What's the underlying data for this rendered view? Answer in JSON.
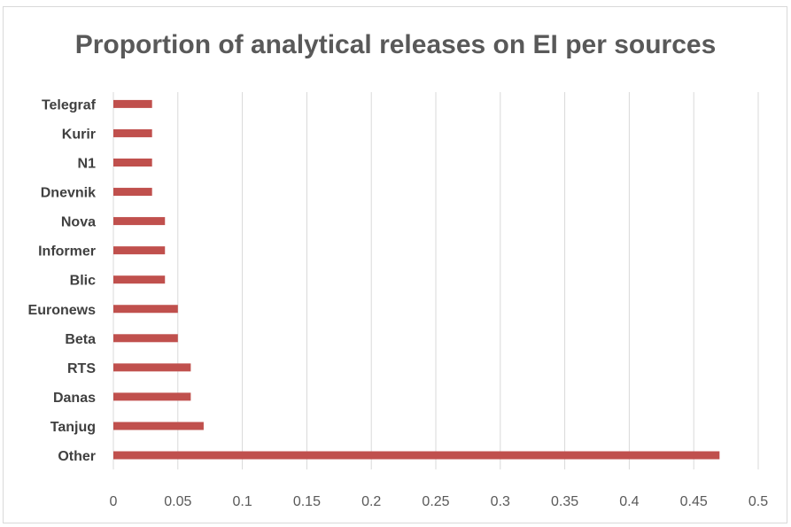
{
  "chart_data": {
    "type": "bar",
    "orientation": "horizontal",
    "title": "Proportion of analytical releases on EI per sources",
    "categories": [
      "Other",
      "Tanjug",
      "Danas",
      "RTS",
      "Beta",
      "Euronews",
      "Blic",
      "Informer",
      "Nova",
      "Dnevnik",
      "N1",
      "Kurir",
      "Telegraf"
    ],
    "values": [
      0.47,
      0.07,
      0.06,
      0.06,
      0.05,
      0.05,
      0.04,
      0.04,
      0.04,
      0.03,
      0.03,
      0.03,
      0.03
    ],
    "xlim": [
      0,
      0.5
    ],
    "xticks": [
      "0",
      "0.05",
      "0.1",
      "0.15",
      "0.2",
      "0.25",
      "0.3",
      "0.35",
      "0.4",
      "0.45",
      "0.5"
    ],
    "grid": true,
    "legend": "none",
    "bar_color": "#c0504d"
  }
}
